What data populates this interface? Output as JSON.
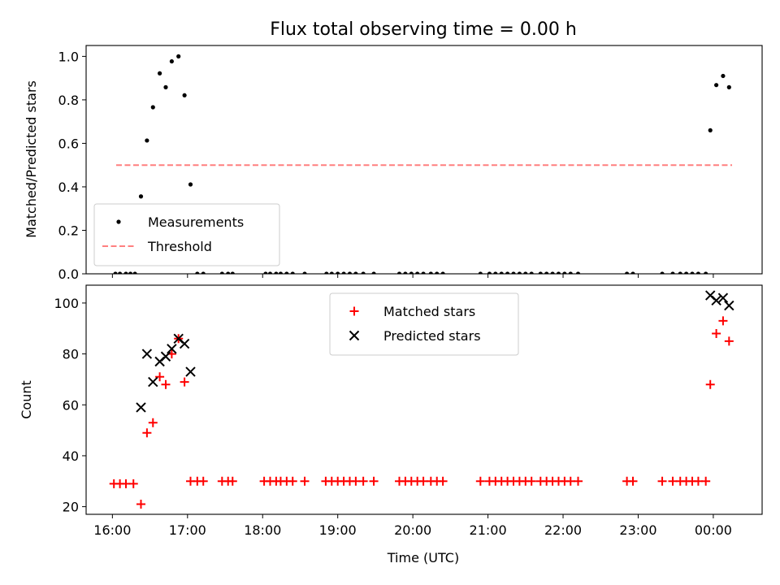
{
  "chart_data": [
    {
      "type": "scatter",
      "title": "Flux total observing time = 0.00 h",
      "xlabel": "",
      "ylabel": "Matched/Predicted stars",
      "xlim": [
        15.65,
        24.65
      ],
      "ylim": [
        0,
        1.05
      ],
      "yticks": [
        "0.0",
        "0.2",
        "0.4",
        "0.6",
        "0.8",
        "1.0"
      ],
      "ytick_values": [
        0,
        0.2,
        0.4,
        0.6,
        0.8,
        1.0
      ],
      "grid": false,
      "legend_placement": "lower-left",
      "series": [
        {
          "name": "Measurements",
          "kind": "dots",
          "color": "#000000",
          "points": [
            [
              16.38,
              0.356
            ],
            [
              16.46,
              0.613
            ],
            [
              16.54,
              0.766
            ],
            [
              16.63,
              0.922
            ],
            [
              16.71,
              0.858
            ],
            [
              16.79,
              0.977
            ],
            [
              16.88,
              1.0
            ],
            [
              16.96,
              0.821
            ],
            [
              17.04,
              0.411
            ],
            [
              23.96,
              0.66
            ],
            [
              24.04,
              0.868
            ],
            [
              24.13,
              0.91
            ],
            [
              24.21,
              0.858
            ],
            [
              16.04,
              0
            ],
            [
              16.1,
              0
            ],
            [
              16.18,
              0
            ],
            [
              16.24,
              0
            ],
            [
              16.3,
              0
            ],
            [
              17.13,
              0
            ],
            [
              17.21,
              0
            ],
            [
              17.46,
              0
            ],
            [
              17.54,
              0
            ],
            [
              17.6,
              0
            ],
            [
              18.04,
              0
            ],
            [
              18.1,
              0
            ],
            [
              18.18,
              0
            ],
            [
              18.24,
              0
            ],
            [
              18.32,
              0
            ],
            [
              18.4,
              0
            ],
            [
              18.56,
              0
            ],
            [
              18.85,
              0
            ],
            [
              18.92,
              0
            ],
            [
              19.0,
              0
            ],
            [
              19.08,
              0
            ],
            [
              19.16,
              0
            ],
            [
              19.24,
              0
            ],
            [
              19.34,
              0
            ],
            [
              19.48,
              0
            ],
            [
              19.82,
              0
            ],
            [
              19.9,
              0
            ],
            [
              19.98,
              0
            ],
            [
              20.06,
              0
            ],
            [
              20.14,
              0
            ],
            [
              20.24,
              0
            ],
            [
              20.32,
              0
            ],
            [
              20.4,
              0
            ],
            [
              20.9,
              0
            ],
            [
              21.02,
              0
            ],
            [
              21.1,
              0
            ],
            [
              21.18,
              0
            ],
            [
              21.26,
              0
            ],
            [
              21.34,
              0
            ],
            [
              21.42,
              0
            ],
            [
              21.5,
              0
            ],
            [
              21.58,
              0
            ],
            [
              21.7,
              0
            ],
            [
              21.78,
              0
            ],
            [
              21.86,
              0
            ],
            [
              21.94,
              0
            ],
            [
              22.02,
              0
            ],
            [
              22.1,
              0
            ],
            [
              22.2,
              0
            ],
            [
              22.85,
              0
            ],
            [
              22.93,
              0
            ],
            [
              23.32,
              0
            ],
            [
              23.46,
              0
            ],
            [
              23.56,
              0
            ],
            [
              23.64,
              0
            ],
            [
              23.72,
              0
            ],
            [
              23.8,
              0
            ],
            [
              23.9,
              0
            ]
          ]
        },
        {
          "name": "Threshold",
          "kind": "dashed-line",
          "color": "#ff7f7f",
          "points": [
            [
              16.05,
              0.5
            ],
            [
              24.25,
              0.5
            ]
          ]
        }
      ]
    },
    {
      "type": "scatter",
      "title": "",
      "xlabel": "Time (UTC)",
      "ylabel": "Count",
      "xlim": [
        15.65,
        24.65
      ],
      "ylim": [
        17,
        107
      ],
      "yticks": [
        "20",
        "40",
        "60",
        "80",
        "100"
      ],
      "ytick_values": [
        20,
        40,
        60,
        80,
        100
      ],
      "xticks": [
        "16:00",
        "17:00",
        "18:00",
        "19:00",
        "20:00",
        "21:00",
        "22:00",
        "23:00",
        "00:00"
      ],
      "xtick_values": [
        16,
        17,
        18,
        19,
        20,
        21,
        22,
        23,
        24
      ],
      "grid": false,
      "legend_placement": "upper-center",
      "series": [
        {
          "name": "Matched stars",
          "kind": "plus",
          "color": "#ff0000",
          "points": [
            [
              16.02,
              29
            ],
            [
              16.1,
              29
            ],
            [
              16.18,
              29
            ],
            [
              16.28,
              29
            ],
            [
              16.38,
              21
            ],
            [
              16.46,
              49
            ],
            [
              16.54,
              53
            ],
            [
              16.63,
              71
            ],
            [
              16.71,
              68
            ],
            [
              16.79,
              80
            ],
            [
              16.88,
              86
            ],
            [
              16.96,
              69
            ],
            [
              17.04,
              30
            ],
            [
              17.13,
              30
            ],
            [
              17.21,
              30
            ],
            [
              17.46,
              30
            ],
            [
              17.54,
              30
            ],
            [
              17.6,
              30
            ],
            [
              18.02,
              30
            ],
            [
              18.1,
              30
            ],
            [
              18.18,
              30
            ],
            [
              18.24,
              30
            ],
            [
              18.32,
              30
            ],
            [
              18.4,
              30
            ],
            [
              18.56,
              30
            ],
            [
              18.84,
              30
            ],
            [
              18.92,
              30
            ],
            [
              19.0,
              30
            ],
            [
              19.08,
              30
            ],
            [
              19.16,
              30
            ],
            [
              19.24,
              30
            ],
            [
              19.34,
              30
            ],
            [
              19.48,
              30
            ],
            [
              19.82,
              30
            ],
            [
              19.9,
              30
            ],
            [
              19.98,
              30
            ],
            [
              20.06,
              30
            ],
            [
              20.14,
              30
            ],
            [
              20.24,
              30
            ],
            [
              20.32,
              30
            ],
            [
              20.4,
              30
            ],
            [
              20.9,
              30
            ],
            [
              21.02,
              30
            ],
            [
              21.1,
              30
            ],
            [
              21.18,
              30
            ],
            [
              21.26,
              30
            ],
            [
              21.34,
              30
            ],
            [
              21.42,
              30
            ],
            [
              21.5,
              30
            ],
            [
              21.58,
              30
            ],
            [
              21.7,
              30
            ],
            [
              21.78,
              30
            ],
            [
              21.86,
              30
            ],
            [
              21.94,
              30
            ],
            [
              22.02,
              30
            ],
            [
              22.1,
              30
            ],
            [
              22.2,
              30
            ],
            [
              22.85,
              30
            ],
            [
              22.93,
              30
            ],
            [
              23.32,
              30
            ],
            [
              23.46,
              30
            ],
            [
              23.56,
              30
            ],
            [
              23.64,
              30
            ],
            [
              23.72,
              30
            ],
            [
              23.8,
              30
            ],
            [
              23.9,
              30
            ],
            [
              23.96,
              68
            ],
            [
              24.04,
              88
            ],
            [
              24.13,
              93
            ],
            [
              24.21,
              85
            ]
          ]
        },
        {
          "name": "Predicted stars",
          "kind": "x",
          "color": "#000000",
          "points": [
            [
              16.38,
              59
            ],
            [
              16.46,
              80
            ],
            [
              16.54,
              69
            ],
            [
              16.63,
              77
            ],
            [
              16.71,
              79
            ],
            [
              16.79,
              82
            ],
            [
              16.88,
              86
            ],
            [
              16.96,
              84
            ],
            [
              17.04,
              73
            ],
            [
              23.96,
              103
            ],
            [
              24.04,
              101
            ],
            [
              24.13,
              102
            ],
            [
              24.21,
              99
            ]
          ]
        }
      ]
    }
  ]
}
